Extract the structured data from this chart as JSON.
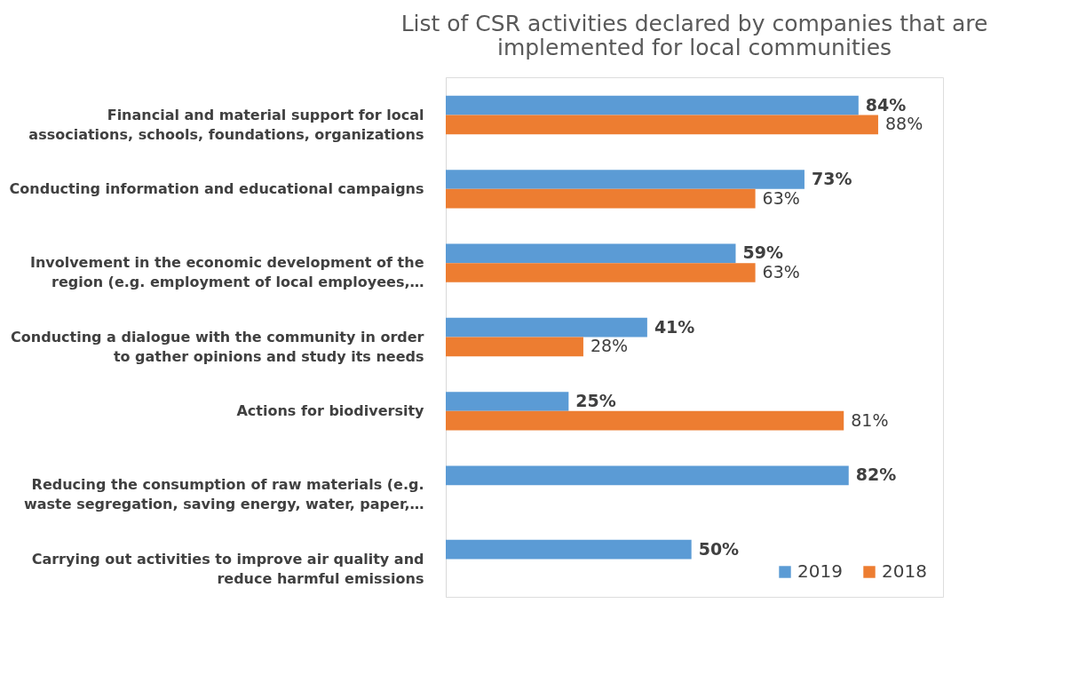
{
  "chart_data": {
    "type": "bar",
    "orientation": "horizontal",
    "title": "List of CSR activities declared by companies that are implemented for local communities",
    "categories": [
      "Financial and material support for local associations, schools, foundations, organizations",
      "Conducting information and educational campaigns",
      "Involvement in the economic development of the region (e.g. employment of local employees,…",
      "Conducting a dialogue with the community in order to gather opinions and study its needs",
      "Actions for biodiversity",
      "Reducing the consumption of raw materials (e.g. waste segregation, saving energy, water, paper,…",
      "Carrying out activities to improve air quality and reduce harmful emissions"
    ],
    "series": [
      {
        "name": "2019",
        "color": "#5b9bd5",
        "values": [
          84,
          73,
          59,
          41,
          25,
          82,
          50
        ],
        "value_labels": [
          "84%",
          "73%",
          "59%",
          "41%",
          "25%",
          "82%",
          "50%"
        ]
      },
      {
        "name": "2018",
        "color": "#ed7d31",
        "values": [
          88,
          63,
          63,
          28,
          81,
          null,
          null
        ],
        "value_labels": [
          "88%",
          "63%",
          "63%",
          "28%",
          "81%",
          null,
          null
        ]
      }
    ],
    "legend": "bottom right",
    "grid": false
  }
}
